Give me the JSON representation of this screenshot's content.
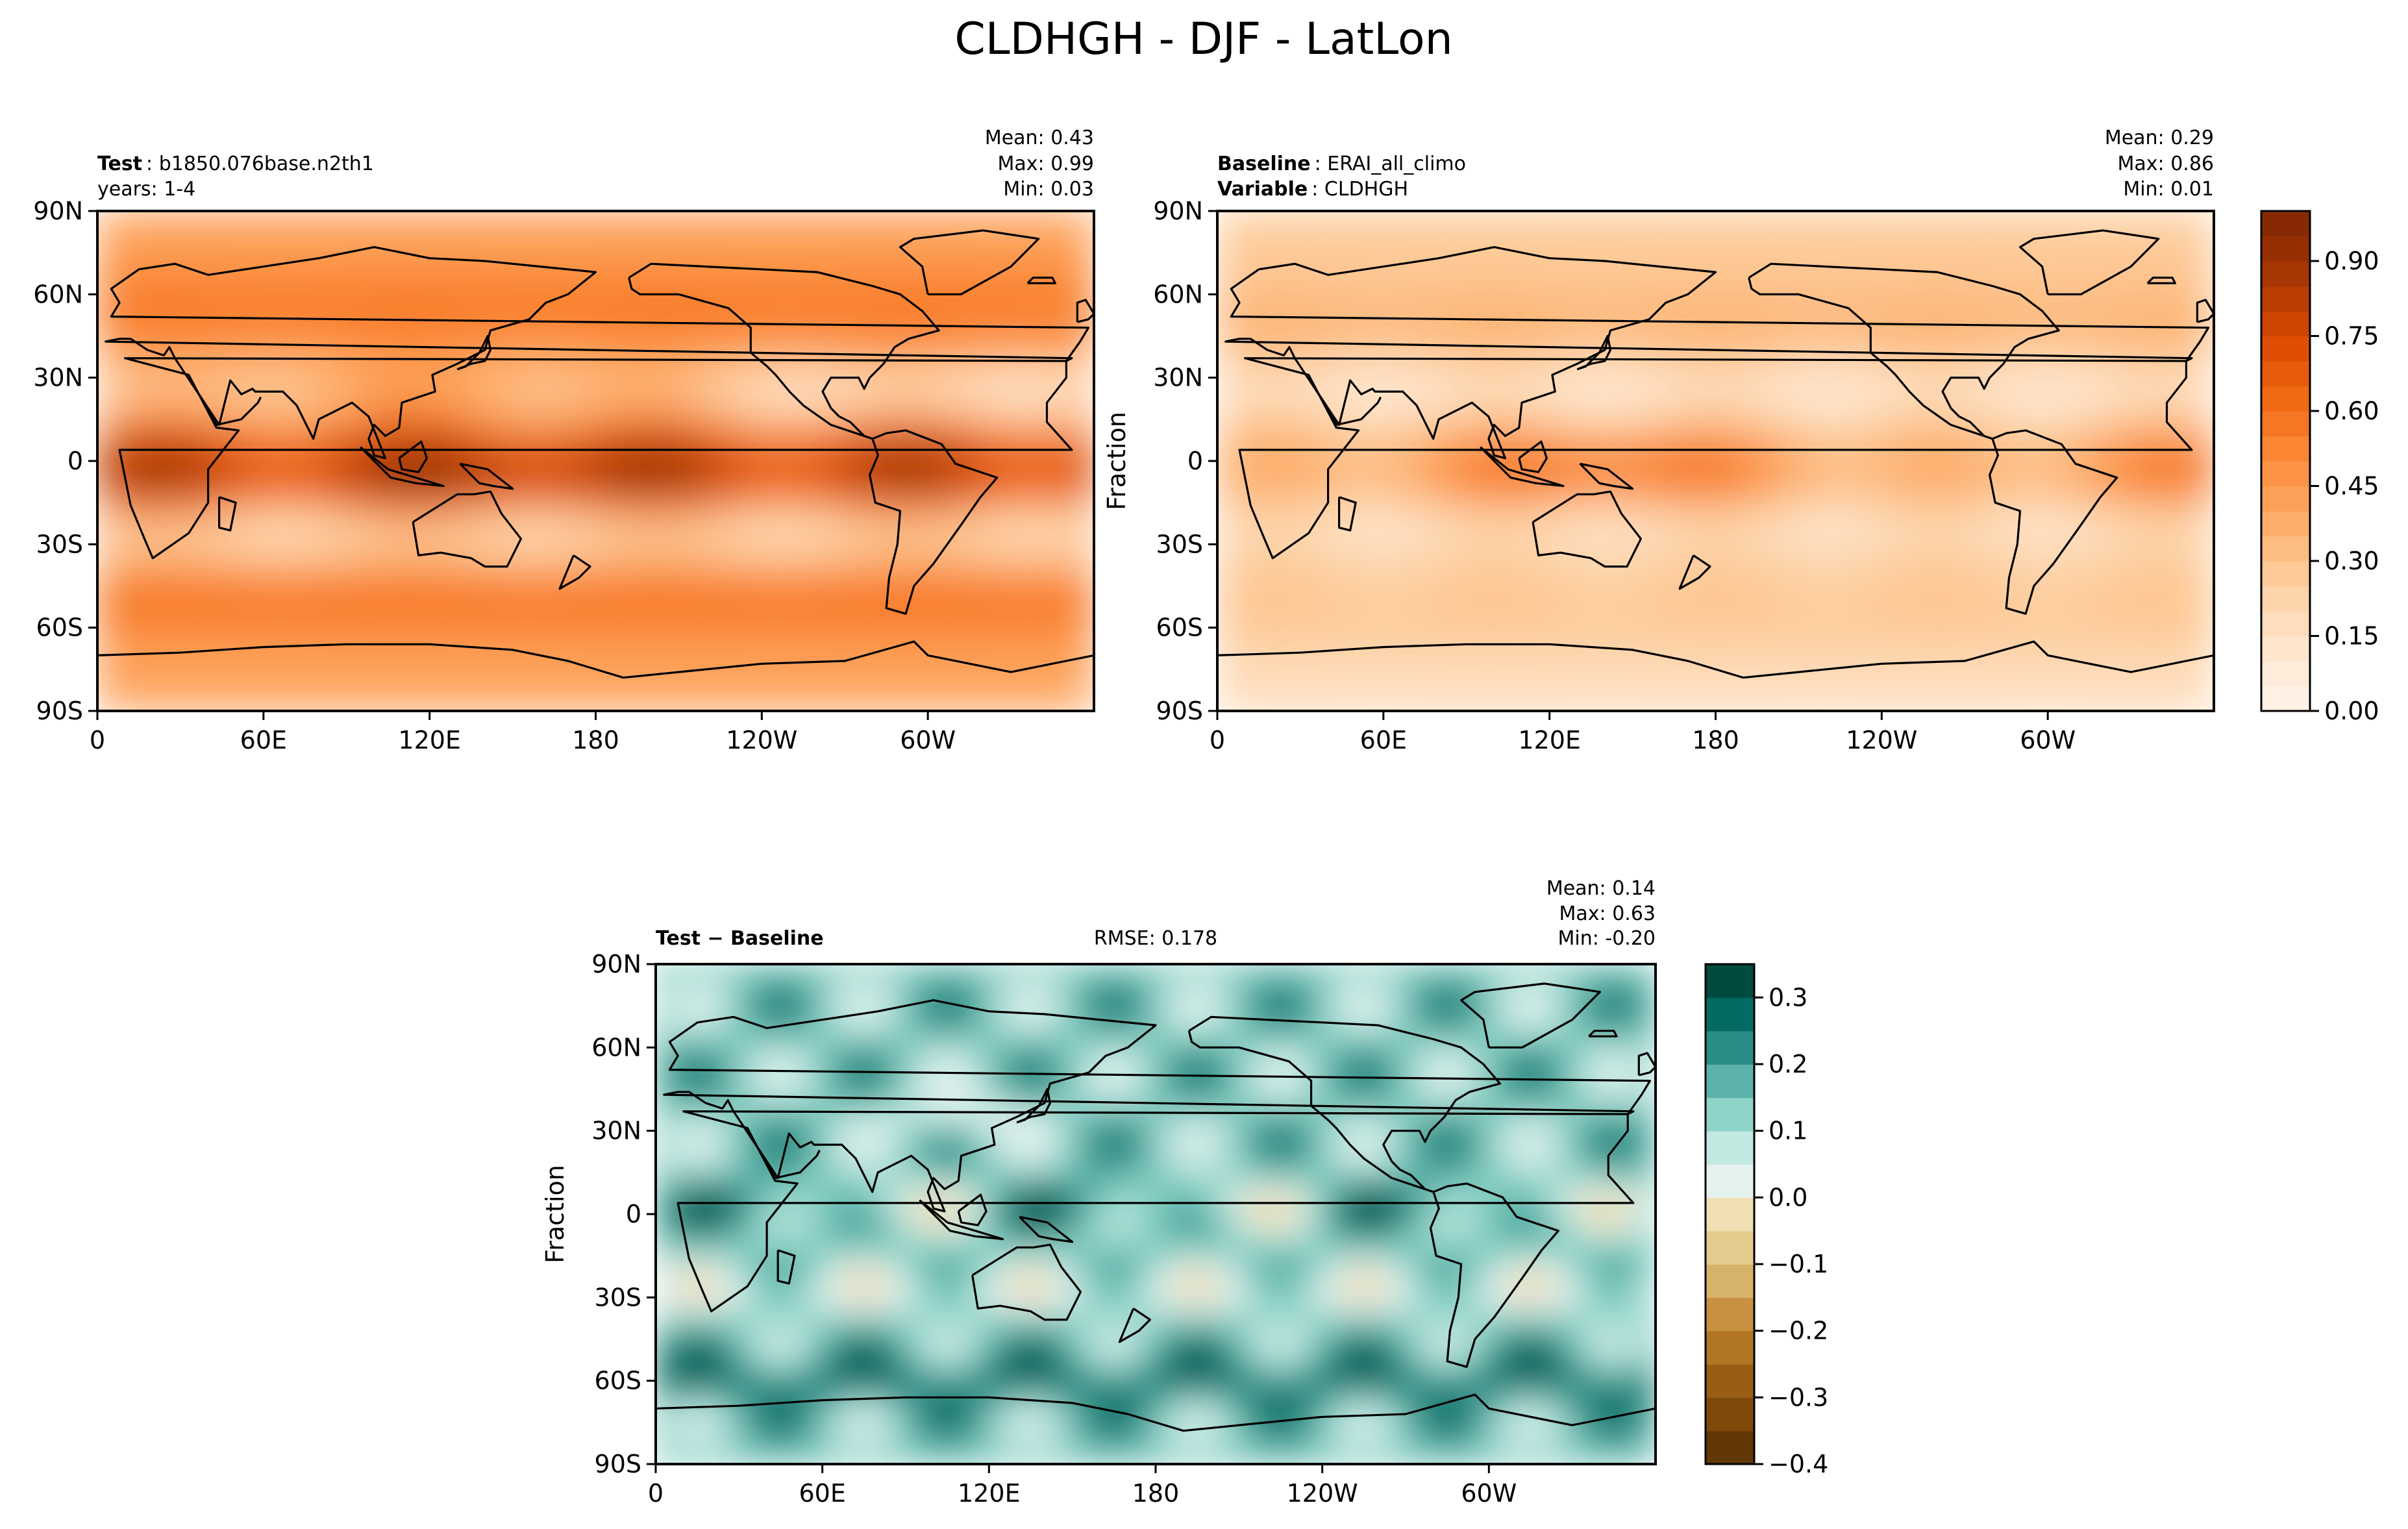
{
  "figure": {
    "title": "CLDHGH - DJF - LatLon"
  },
  "colors": {
    "seq_palette": [
      "#fff5eb",
      "#fee6ce",
      "#fdd0a2",
      "#fdae6b",
      "#fd8d3c",
      "#f16913",
      "#d94801",
      "#a63603",
      "#7f2704"
    ],
    "div_palette_neg": [
      "#543005",
      "#8c510a",
      "#bf812d",
      "#dfc27d",
      "#f6e8c3"
    ],
    "div_palette_pos": [
      "#f5f5f5",
      "#c7eae5",
      "#80cdc1",
      "#35978f",
      "#01665e",
      "#003c30"
    ],
    "coast": "#000000"
  },
  "chart_data": [
    {
      "type": "heatmap",
      "name": "test-panel",
      "label_bold": "Test",
      "label_value": "b1850.076base.n2th1",
      "label_line2": "years: 1-4",
      "stats": {
        "mean": "Mean:  0.43",
        "max": "Max:  0.99",
        "min": "Min:  0.03"
      },
      "ylabel": "",
      "xticks": [
        "0",
        "60E",
        "120E",
        "180",
        "120W",
        "60W"
      ],
      "yticks": [
        "90N",
        "60N",
        "30N",
        "0",
        "30S",
        "60S",
        "90S"
      ],
      "xlim": [
        0,
        360
      ],
      "ylim": [
        -90,
        90
      ],
      "field": {
        "mean": 0.43,
        "max": 0.99,
        "min": 0.03
      }
    },
    {
      "type": "heatmap",
      "name": "baseline-panel",
      "label_bold": "Baseline",
      "label_value": "ERAI_all_climo",
      "label2_bold": "Variable",
      "label2_value": "CLDHGH",
      "stats": {
        "mean": "Mean:  0.29",
        "max": "Max:  0.86",
        "min": "Min:  0.01"
      },
      "ylabel": "Fraction",
      "xticks": [
        "0",
        "60E",
        "120E",
        "180",
        "120W",
        "60W"
      ],
      "yticks": [
        "90N",
        "60N",
        "30N",
        "0",
        "30S",
        "60S",
        "90S"
      ],
      "xlim": [
        0,
        360
      ],
      "ylim": [
        -90,
        90
      ],
      "field": {
        "mean": 0.29,
        "max": 0.86,
        "min": 0.01
      }
    },
    {
      "type": "heatmap",
      "name": "difference-panel",
      "label_bold": "Test − Baseline",
      "rmse": "RMSE: 0.178",
      "stats": {
        "mean": "Mean:  0.14",
        "max": "Max:  0.63",
        "min": "Min: -0.20"
      },
      "ylabel": "Fraction",
      "xticks": [
        "0",
        "60E",
        "120E",
        "180",
        "120W",
        "60W"
      ],
      "yticks": [
        "90N",
        "60N",
        "30N",
        "0",
        "30S",
        "60S",
        "90S"
      ],
      "xlim": [
        0,
        360
      ],
      "ylim": [
        -90,
        90
      ],
      "field": {
        "mean": 0.14,
        "max": 0.63,
        "min": -0.2
      }
    }
  ],
  "colorbars": [
    {
      "name": "sequential-colorbar",
      "range": [
        0.0,
        1.0
      ],
      "levels": 20,
      "ticks": [
        0.0,
        0.15,
        0.3,
        0.45,
        0.6,
        0.75,
        0.9
      ],
      "tick_labels": [
        "0.00",
        "0.15",
        "0.30",
        "0.45",
        "0.60",
        "0.75",
        "0.90"
      ]
    },
    {
      "name": "difference-colorbar",
      "range": [
        -0.4,
        0.35
      ],
      "levels": 15,
      "ticks": [
        -0.4,
        -0.3,
        -0.2,
        -0.1,
        0.0,
        0.1,
        0.2,
        0.3
      ],
      "tick_labels": [
        "−0.4",
        "−0.3",
        "−0.2",
        "−0.1",
        "0.0",
        "0.1",
        "0.2",
        "0.3"
      ]
    }
  ]
}
